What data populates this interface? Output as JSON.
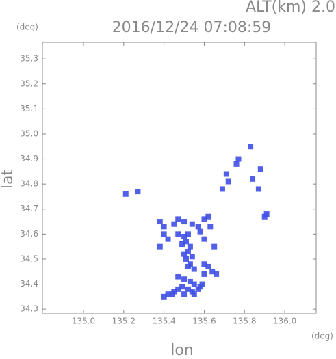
{
  "chart_data": {
    "type": "scatter",
    "title": "2016/12/24 07:08:59",
    "subtitle": "ALT(km) 2.0",
    "y_unit": "(deg)",
    "x_unit": "(deg)",
    "xlabel": "lon",
    "ylabel": "lat",
    "color": "#3f4fe6",
    "xlim": [
      134.796,
      136.156
    ],
    "ylim": [
      34.284,
      35.366
    ],
    "xticks": [
      {
        "value": 135.0,
        "label": "135.0"
      },
      {
        "value": 135.2,
        "label": "135.2"
      },
      {
        "value": 135.4,
        "label": "135.4"
      },
      {
        "value": 135.6,
        "label": "135.6"
      },
      {
        "value": 135.8,
        "label": "135.8"
      },
      {
        "value": 136.0,
        "label": "136.0"
      }
    ],
    "yticks": [
      34.3,
      34.4,
      34.5,
      34.6,
      34.7,
      34.8,
      34.9,
      {
        "value": 35.0,
        "label": "35.0"
      },
      35.1,
      35.2,
      35.3
    ],
    "x": [
      135.83,
      135.76,
      135.77,
      135.88,
      135.71,
      135.72,
      135.69,
      135.84,
      135.87,
      135.21,
      135.27,
      135.91,
      135.9,
      135.38,
      135.4,
      135.45,
      135.47,
      135.5,
      135.54,
      135.57,
      135.6,
      135.62,
      135.63,
      135.47,
      135.5,
      135.52,
      135.49,
      135.51,
      135.53,
      135.52,
      135.54,
      135.51,
      135.53,
      135.52,
      135.55,
      135.6,
      135.62,
      135.64,
      135.6,
      135.66,
      135.47,
      135.5,
      135.53,
      135.55,
      135.49,
      135.52,
      135.54,
      135.57,
      135.59,
      135.45,
      135.42,
      135.4,
      135.44,
      135.47,
      135.5,
      135.55,
      135.58,
      135.4,
      135.38,
      135.42,
      135.58,
      135.5,
      135.6,
      135.65
    ],
    "y": [
      34.95,
      34.88,
      34.9,
      34.86,
      34.84,
      34.81,
      34.78,
      34.82,
      34.78,
      34.76,
      34.77,
      34.68,
      34.67,
      34.65,
      34.63,
      34.64,
      34.66,
      34.65,
      34.64,
      34.63,
      34.66,
      34.67,
      34.63,
      34.6,
      34.59,
      34.6,
      34.56,
      34.57,
      34.55,
      34.53,
      34.51,
      34.5,
      34.48,
      34.47,
      34.46,
      34.48,
      34.47,
      34.45,
      34.44,
      34.44,
      34.43,
      34.42,
      34.41,
      34.4,
      34.39,
      34.38,
      34.37,
      34.38,
      34.4,
      34.37,
      34.36,
      34.35,
      34.36,
      34.38,
      34.36,
      34.36,
      34.39,
      34.6,
      34.55,
      34.58,
      34.61,
      34.52,
      34.58,
      34.55
    ]
  }
}
